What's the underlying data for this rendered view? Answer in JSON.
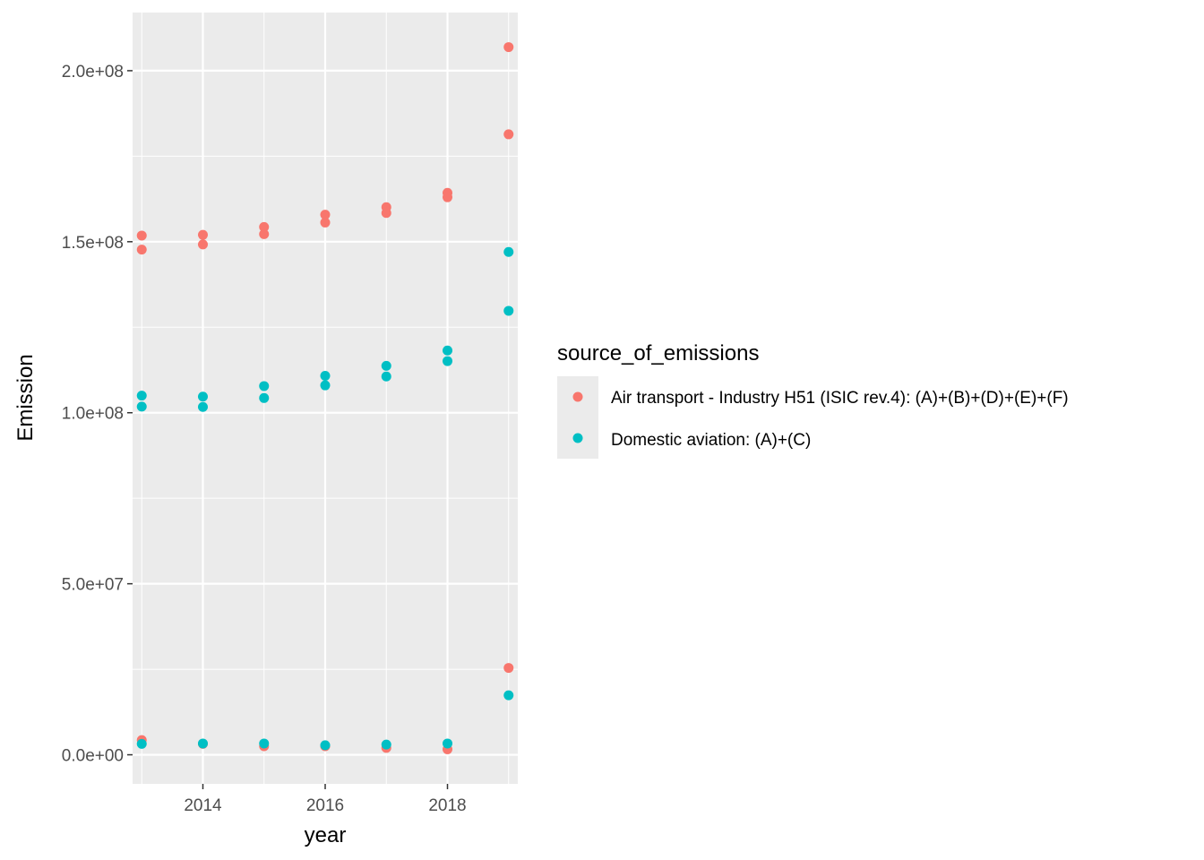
{
  "chart_data": {
    "type": "scatter",
    "xlabel": "year",
    "ylabel": "Emission",
    "xlim": [
      2012.85,
      2019.15
    ],
    "ylim": [
      -8500000,
      217000000
    ],
    "x_ticks": [
      2014,
      2016,
      2018
    ],
    "x_tick_labels": [
      "2014",
      "2016",
      "2018"
    ],
    "x_minor_ticks": [
      2013,
      2015,
      2017,
      2019
    ],
    "y_ticks": [
      0,
      50000000,
      100000000,
      150000000,
      200000000
    ],
    "y_tick_labels": [
      "0.0e+00",
      "5.0e+07",
      "1.0e+08",
      "1.5e+08",
      "2.0e+08"
    ],
    "y_minor_ticks": [
      25000000,
      75000000,
      125000000,
      175000000
    ],
    "grid": true,
    "legend_title": "source_of_emissions",
    "legend_position": "right",
    "series": [
      {
        "name": "Air transport - Industry H51 (ISIC rev.4): (A)+(B)+(D)+(E)+(F)",
        "color": "#F8766D",
        "points": [
          [
            2013,
            151800000
          ],
          [
            2013,
            147700000
          ],
          [
            2013,
            4300000
          ],
          [
            2014,
            152000000
          ],
          [
            2014,
            149200000
          ],
          [
            2014,
            3200000
          ],
          [
            2015,
            154300000
          ],
          [
            2015,
            152200000
          ],
          [
            2015,
            2500000
          ],
          [
            2016,
            157900000
          ],
          [
            2016,
            155600000
          ],
          [
            2016,
            2500000
          ],
          [
            2017,
            160100000
          ],
          [
            2017,
            158400000
          ],
          [
            2017,
            2000000
          ],
          [
            2018,
            164300000
          ],
          [
            2018,
            163000000
          ],
          [
            2018,
            1600000
          ],
          [
            2019,
            206900000
          ],
          [
            2019,
            181400000
          ],
          [
            2019,
            25400000
          ]
        ]
      },
      {
        "name": "Domestic aviation: (A)+(C)",
        "color": "#00BFC4",
        "points": [
          [
            2013,
            105000000
          ],
          [
            2013,
            101800000
          ],
          [
            2013,
            3200000
          ],
          [
            2014,
            104700000
          ],
          [
            2014,
            101700000
          ],
          [
            2014,
            3300000
          ],
          [
            2015,
            107800000
          ],
          [
            2015,
            104300000
          ],
          [
            2015,
            3300000
          ],
          [
            2016,
            110800000
          ],
          [
            2016,
            108000000
          ],
          [
            2016,
            2800000
          ],
          [
            2017,
            113700000
          ],
          [
            2017,
            110600000
          ],
          [
            2017,
            3000000
          ],
          [
            2018,
            118200000
          ],
          [
            2018,
            115100000
          ],
          [
            2018,
            3300000
          ],
          [
            2019,
            147000000
          ],
          [
            2019,
            129800000
          ],
          [
            2019,
            17400000
          ]
        ]
      }
    ]
  }
}
